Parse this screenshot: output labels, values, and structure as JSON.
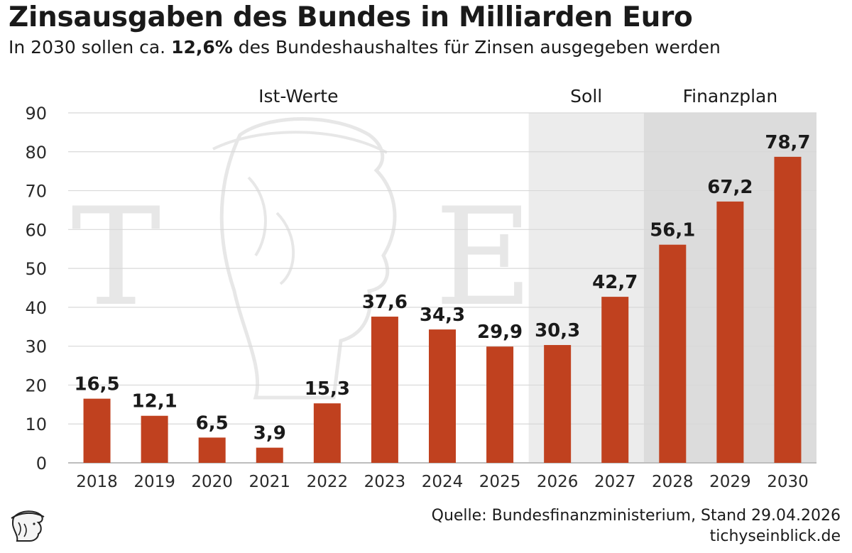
{
  "title": "Zinsausgaben des Bundes in Milliarden Euro",
  "subtitle": {
    "prefix": "In 2030 sollen ca. ",
    "highlight": "12,6%",
    "suffix": " des Bundeshaushaltes für Zinsen ausgegeben werden"
  },
  "chart_data": {
    "type": "bar",
    "categories": [
      "2018",
      "2019",
      "2020",
      "2021",
      "2022",
      "2023",
      "2024",
      "2025",
      "2026",
      "2027",
      "2028",
      "2029",
      "2030"
    ],
    "values": [
      16.5,
      12.1,
      6.5,
      3.9,
      15.3,
      37.6,
      34.3,
      29.9,
      30.3,
      42.7,
      56.1,
      67.2,
      78.7
    ],
    "value_labels": [
      "16,5",
      "12,1",
      "6,5",
      "3,9",
      "15,3",
      "37,6",
      "34,3",
      "29,9",
      "30,3",
      "42,7",
      "56,1",
      "67,2",
      "78,7"
    ],
    "ylim": [
      0,
      90
    ],
    "yticks": [
      0,
      10,
      20,
      30,
      40,
      50,
      60,
      70,
      80,
      90
    ],
    "grid": true,
    "bar_color": "#c0411f",
    "regions": [
      {
        "label": "Ist-Werte",
        "from": "2018",
        "to": "2025",
        "shade": "none"
      },
      {
        "label": "Soll",
        "from": "2026",
        "to": "2027",
        "shade": "#ececec"
      },
      {
        "label": "Finanzplan",
        "from": "2028",
        "to": "2030",
        "shade": "#dcdcdc"
      }
    ],
    "watermark_letters": [
      "T",
      "E"
    ]
  },
  "footer": {
    "source": "Quelle: Bundesfinanzministerium, Stand 29.04.2026",
    "site": "tichyseinblick.de"
  },
  "icons": {
    "watermark": "hermes-head-watermark-icon",
    "logo": "hermes-head-logo-icon"
  }
}
